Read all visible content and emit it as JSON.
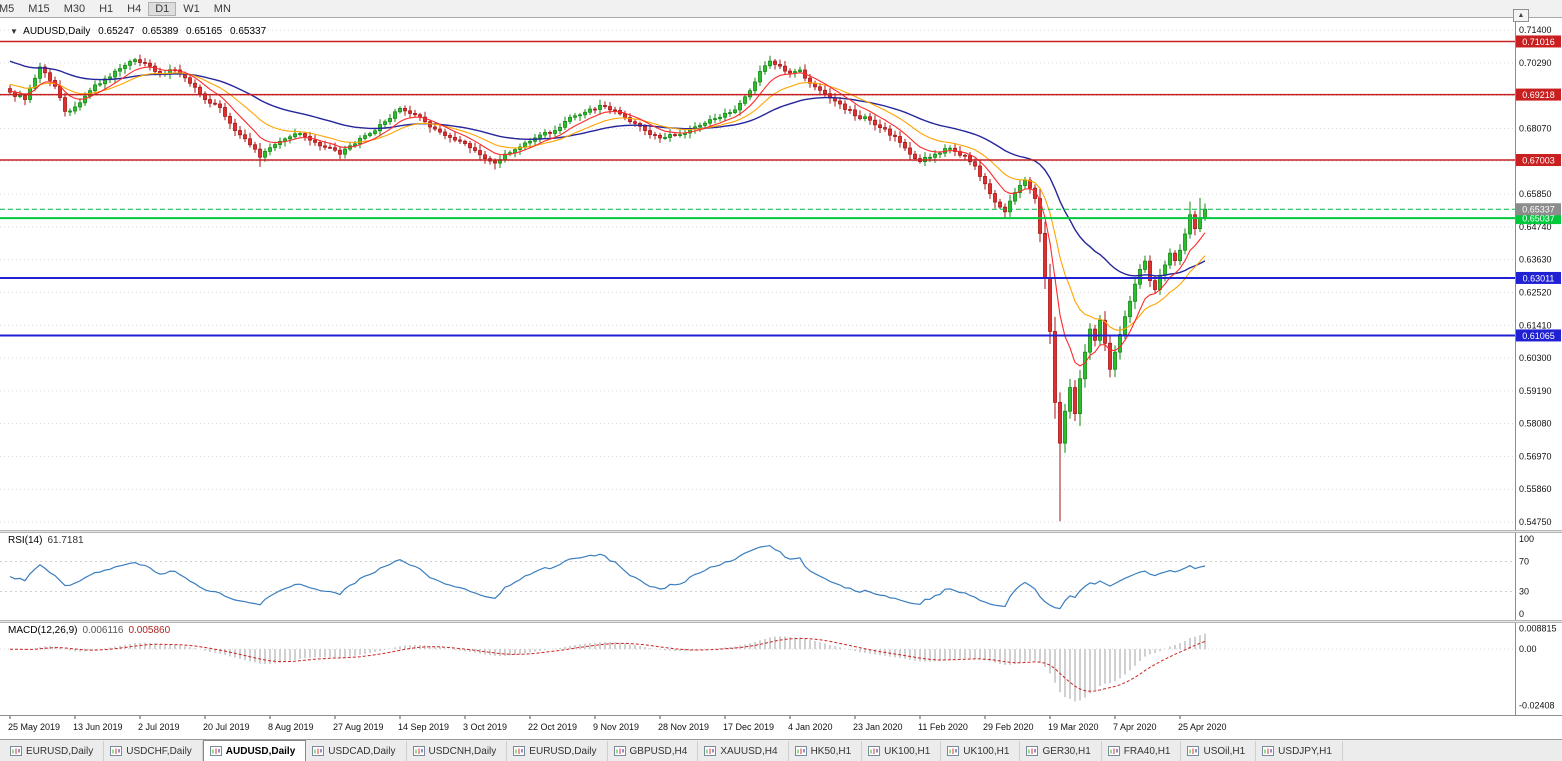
{
  "toolbar": {
    "timeframes": [
      "M5",
      "M15",
      "M30",
      "H1",
      "H4",
      "D1",
      "W1",
      "MN"
    ],
    "active": "D1"
  },
  "misc": {
    "scroll_up_icon": "▲",
    "dropdown_icon": "▼"
  },
  "chart": {
    "symbol_label": "AUDUSD,Daily",
    "ohlc": {
      "open": "0.65247",
      "high": "0.65389",
      "low": "0.65165",
      "close": "0.65337"
    },
    "axis": {
      "price_max": 0.7181,
      "price_min": 0.5448,
      "tick_labels": [
        "0.71400",
        "0.70290",
        "0.69180",
        "0.68070",
        "0.66960",
        "0.65850",
        "0.64740",
        "0.63630",
        "0.62520",
        "0.61410",
        "0.60300",
        "0.59190",
        "0.58080",
        "0.56970",
        "0.55860",
        "0.54750"
      ]
    },
    "hlines": [
      {
        "price": 0.71016,
        "color": "#c82020",
        "label": "0.71016",
        "width": 1.5
      },
      {
        "price": 0.69218,
        "color": "#c82020",
        "label": "0.69218",
        "width": 1.5
      },
      {
        "price": 0.67003,
        "color": "#c82020",
        "label": "0.67003",
        "width": 1.5
      },
      {
        "price": 0.65037,
        "color": "#00c83c",
        "label": "0.65037",
        "width": 2
      },
      {
        "price": 0.63011,
        "color": "#2121d4",
        "label": "0.63011",
        "width": 2
      },
      {
        "price": 0.61065,
        "color": "#2121d4",
        "label": "0.61065",
        "width": 2
      }
    ],
    "current_price": {
      "price": 0.65337,
      "label": "0.65337",
      "color": "#8c8c8c"
    },
    "colors": {
      "up": "#2dbe2d",
      "up_border": "#118a11",
      "down": "#e02f2f",
      "down_border": "#a81414",
      "ma_fast": "#ff2a2a",
      "ma_mid": "#ffa400",
      "ma_slow": "#26269c",
      "rsi": "#3a7ebf",
      "macd_hist": "#a0a0a0",
      "macd_signal": "#cc2222",
      "grid": "#d9d9d9"
    },
    "candles": {
      "count": 240,
      "waypoints": [
        [
          0,
          0.693
        ],
        [
          3,
          0.6905
        ],
        [
          6,
          0.7015
        ],
        [
          9,
          0.695
        ],
        [
          11,
          0.6865
        ],
        [
          13,
          0.688
        ],
        [
          16,
          0.6935
        ],
        [
          19,
          0.6975
        ],
        [
          22,
          0.701
        ],
        [
          25,
          0.704
        ],
        [
          27,
          0.7028
        ],
        [
          30,
          0.699
        ],
        [
          33,
          0.7005
        ],
        [
          36,
          0.696
        ],
        [
          39,
          0.6905
        ],
        [
          42,
          0.6878
        ],
        [
          45,
          0.68
        ],
        [
          48,
          0.6752
        ],
        [
          50,
          0.671
        ],
        [
          52,
          0.6742
        ],
        [
          55,
          0.6772
        ],
        [
          58,
          0.679
        ],
        [
          61,
          0.676
        ],
        [
          64,
          0.6742
        ],
        [
          66,
          0.672
        ],
        [
          69,
          0.6755
        ],
        [
          72,
          0.679
        ],
        [
          75,
          0.683
        ],
        [
          78,
          0.6875
        ],
        [
          80,
          0.6858
        ],
        [
          83,
          0.683
        ],
        [
          86,
          0.6795
        ],
        [
          89,
          0.6768
        ],
        [
          92,
          0.6742
        ],
        [
          95,
          0.6705
        ],
        [
          97,
          0.669
        ],
        [
          100,
          0.6725
        ],
        [
          103,
          0.6758
        ],
        [
          106,
          0.6785
        ],
        [
          109,
          0.68
        ],
        [
          112,
          0.6845
        ],
        [
          115,
          0.6862
        ],
        [
          118,
          0.6885
        ],
        [
          121,
          0.6868
        ],
        [
          124,
          0.683
        ],
        [
          127,
          0.68
        ],
        [
          130,
          0.6775
        ],
        [
          133,
          0.6785
        ],
        [
          136,
          0.6805
        ],
        [
          139,
          0.6825
        ],
        [
          142,
          0.6845
        ],
        [
          145,
          0.687
        ],
        [
          148,
          0.6935
        ],
        [
          150,
          0.7
        ],
        [
          152,
          0.7035
        ],
        [
          154,
          0.7018
        ],
        [
          156,
          0.6995
        ],
        [
          158,
          0.7005
        ],
        [
          160,
          0.696
        ],
        [
          163,
          0.6925
        ],
        [
          166,
          0.689
        ],
        [
          169,
          0.685
        ],
        [
          172,
          0.6835
        ],
        [
          175,
          0.6805
        ],
        [
          178,
          0.676
        ],
        [
          180,
          0.672
        ],
        [
          182,
          0.6695
        ],
        [
          185,
          0.672
        ],
        [
          188,
          0.674
        ],
        [
          191,
          0.6715
        ],
        [
          193,
          0.668
        ],
        [
          195,
          0.662
        ],
        [
          197,
          0.6558
        ],
        [
          199,
          0.6525
        ],
        [
          201,
          0.659
        ],
        [
          203,
          0.6632
        ],
        [
          205,
          0.657
        ],
        [
          206,
          0.6452
        ],
        [
          207,
          0.63
        ],
        [
          208,
          0.612
        ],
        [
          209,
          0.588
        ],
        [
          210,
          0.5742
        ],
        [
          211,
          0.585
        ],
        [
          212,
          0.593
        ],
        [
          213,
          0.5842
        ],
        [
          214,
          0.596
        ],
        [
          215,
          0.605
        ],
        [
          216,
          0.6128
        ],
        [
          217,
          0.609
        ],
        [
          218,
          0.6158
        ],
        [
          219,
          0.608
        ],
        [
          220,
          0.5992
        ],
        [
          221,
          0.605
        ],
        [
          222,
          0.611
        ],
        [
          223,
          0.617
        ],
        [
          224,
          0.6222
        ],
        [
          225,
          0.628
        ],
        [
          226,
          0.633
        ],
        [
          227,
          0.6358
        ],
        [
          228,
          0.6292
        ],
        [
          229,
          0.6262
        ],
        [
          230,
          0.631
        ],
        [
          231,
          0.6345
        ],
        [
          232,
          0.6385
        ],
        [
          233,
          0.636
        ],
        [
          234,
          0.6395
        ],
        [
          235,
          0.645
        ],
        [
          236,
          0.6515
        ],
        [
          237,
          0.6468
        ],
        [
          238,
          0.6505
        ],
        [
          239,
          0.65337
        ]
      ],
      "special_lows": {
        "50": 0.6677,
        "97": 0.6668,
        "199": 0.6518,
        "210": 0.5478,
        "214": 0.58
      },
      "special_highs": {
        "25": 0.7046,
        "152": 0.7046,
        "236": 0.656,
        "238": 0.6572
      }
    },
    "ma_periods": {
      "fast": 8,
      "mid": 17,
      "slow": 40
    },
    "ma_seeds": {
      "fast": 0.6935,
      "mid": 0.696,
      "slow": 0.704
    }
  },
  "rsi": {
    "label": "RSI(14)",
    "value": "61.7181",
    "period": 14,
    "ticks": [
      "100",
      "70",
      "30",
      "0"
    ],
    "levels": [
      70,
      30
    ]
  },
  "macd": {
    "label": "MACD(12,26,9)",
    "value_main": "0.006116",
    "value_signal": "0.005860",
    "ticks": {
      "top": "0.008815",
      "zero": "0.00",
      "bottom": "-0.02408"
    },
    "range": {
      "max": 0.0095,
      "min": -0.0265
    }
  },
  "dates": {
    "labels": [
      "25 May 2019",
      "13 Jun 2019",
      "2 Jul 2019",
      "20 Jul 2019",
      "8 Aug 2019",
      "27 Aug 2019",
      "14 Sep 2019",
      "3 Oct 2019",
      "22 Oct 2019",
      "9 Nov 2019",
      "28 Nov 2019",
      "17 Dec 2019",
      "4 Jan 2020",
      "23 Jan 2020",
      "11 Feb 2020",
      "29 Feb 2020",
      "19 Mar 2020",
      "7 Apr 2020",
      "25 Apr 2020"
    ],
    "index_step": 13
  },
  "tabs": {
    "active_index": 2,
    "items": [
      {
        "label": "EURUSD,Daily"
      },
      {
        "label": "USDCHF,Daily"
      },
      {
        "label": "AUDUSD,Daily"
      },
      {
        "label": "USDCAD,Daily"
      },
      {
        "label": "USDCNH,Daily"
      },
      {
        "label": "EURUSD,Daily"
      },
      {
        "label": "GBPUSD,H4"
      },
      {
        "label": "XAUUSD,H4"
      },
      {
        "label": "HK50,H1"
      },
      {
        "label": "UK100,H1"
      },
      {
        "label": "UK100,H1"
      },
      {
        "label": "GER30,H1"
      },
      {
        "label": "FRA40,H1"
      },
      {
        "label": "USOil,H1"
      },
      {
        "label": "USDJPY,H1"
      }
    ]
  }
}
